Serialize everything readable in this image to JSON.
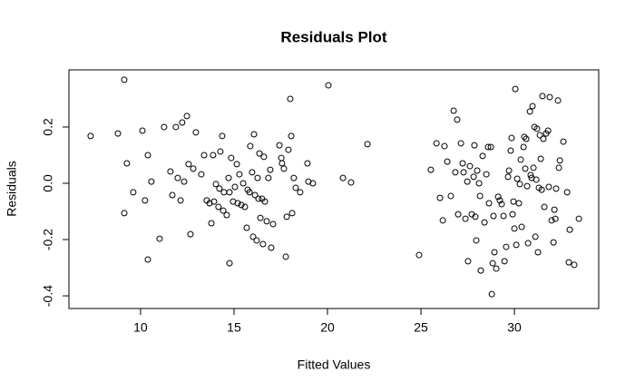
{
  "chart_data": {
    "type": "scatter",
    "title": "Residuals Plot",
    "xlabel": "Fitted Values",
    "ylabel": "Residuals",
    "x": [
      7.33,
      8.79,
      9.13,
      9.27,
      9.13,
      9.61,
      10.1,
      10.24,
      10.39,
      10.39,
      10.58,
      11.02,
      11.26,
      11.6,
      11.7,
      11.89,
      11.99,
      12.14,
      12.23,
      12.33,
      12.48,
      12.57,
      12.67,
      12.82,
      12.96,
      13.25,
      13.4,
      13.54,
      13.69,
      13.79,
      13.88,
      13.93,
      14.03,
      14.17,
      14.22,
      14.27,
      14.37,
      14.42,
      14.46,
      14.61,
      14.71,
      14.76,
      14.76,
      14.85,
      14.95,
      15.05,
      15.15,
      15.2,
      15.29,
      15.39,
      15.49,
      15.58,
      15.68,
      15.73,
      15.83,
      15.87,
      15.97,
      16.02,
      16.07,
      16.12,
      16.21,
      16.26,
      16.31,
      16.36,
      16.41,
      16.5,
      16.55,
      16.6,
      16.65,
      16.75,
      16.84,
      16.94,
      16.99,
      17.09,
      17.43,
      17.53,
      17.57,
      17.67,
      17.77,
      17.82,
      17.91,
      18.01,
      18.06,
      18.11,
      18.2,
      18.3,
      18.54,
      18.93,
      18.98,
      19.22,
      20.05,
      20.83,
      21.26,
      22.14,
      24.9,
      25.53,
      25.83,
      26.02,
      26.17,
      26.26,
      26.41,
      26.6,
      26.75,
      26.84,
      26.94,
      26.99,
      27.14,
      27.23,
      27.28,
      27.38,
      27.48,
      27.52,
      27.62,
      27.72,
      27.82,
      27.86,
      27.91,
      27.96,
      28.01,
      28.11,
      28.16,
      28.2,
      28.3,
      28.4,
      28.5,
      28.59,
      28.64,
      28.74,
      28.79,
      28.84,
      28.88,
      28.93,
      29.03,
      29.13,
      29.22,
      29.32,
      29.42,
      29.47,
      29.56,
      29.66,
      29.71,
      29.8,
      29.85,
      29.9,
      29.95,
      30.0,
      30.05,
      30.1,
      30.15,
      30.24,
      30.29,
      30.34,
      30.39,
      30.49,
      30.53,
      30.58,
      30.63,
      30.68,
      30.73,
      30.83,
      30.87,
      30.92,
      30.97,
      31.02,
      31.07,
      31.12,
      31.17,
      31.21,
      31.26,
      31.31,
      31.36,
      31.41,
      31.46,
      31.5,
      31.55,
      31.6,
      31.7,
      31.8,
      31.84,
      31.89,
      31.99,
      32.09,
      32.14,
      32.19,
      32.23,
      32.33,
      32.38,
      32.43,
      32.62,
      32.82,
      32.91,
      32.96,
      33.2,
      33.45
    ],
    "values": [
      0.168,
      0.177,
      0.368,
      0.071,
      -0.106,
      -0.032,
      0.187,
      -0.061,
      0.1,
      -0.271,
      0.006,
      -0.197,
      0.2,
      0.042,
      -0.042,
      0.2,
      0.019,
      -0.061,
      0.216,
      0.006,
      0.239,
      0.068,
      -0.181,
      0.052,
      0.181,
      0.032,
      0.1,
      -0.061,
      -0.071,
      -0.142,
      0.1,
      -0.065,
      -0.003,
      -0.084,
      -0.019,
      0.113,
      0.168,
      -0.097,
      -0.032,
      -0.113,
      0.019,
      -0.032,
      -0.284,
      0.09,
      -0.065,
      -0.013,
      0.068,
      -0.071,
      0.032,
      -0.077,
      0.0,
      -0.084,
      -0.158,
      -0.023,
      -0.032,
      0.132,
      0.039,
      -0.19,
      0.174,
      -0.042,
      -0.203,
      0.019,
      -0.055,
      0.106,
      -0.123,
      -0.055,
      -0.216,
      0.094,
      -0.065,
      -0.135,
      0.019,
      0.048,
      -0.229,
      -0.145,
      0.135,
      0.09,
      0.071,
      0.052,
      -0.261,
      -0.119,
      0.119,
      0.3,
      0.168,
      -0.106,
      0.019,
      -0.016,
      -0.032,
      0.071,
      0.006,
      0.0,
      0.348,
      0.019,
      0.003,
      0.139,
      -0.255,
      0.048,
      0.142,
      -0.052,
      -0.132,
      0.132,
      0.077,
      -0.045,
      0.258,
      0.039,
      0.226,
      -0.11,
      0.142,
      0.071,
      0.039,
      -0.126,
      0.006,
      -0.277,
      0.061,
      -0.11,
      0.023,
      0.135,
      -0.119,
      -0.203,
      0.045,
      0.0,
      -0.045,
      -0.31,
      0.097,
      -0.139,
      0.032,
      0.129,
      -0.071,
      0.129,
      -0.394,
      -0.284,
      -0.116,
      -0.245,
      -0.303,
      -0.048,
      -0.061,
      -0.074,
      -0.116,
      -0.277,
      -0.226,
      0.023,
      0.045,
      0.116,
      0.161,
      -0.11,
      -0.065,
      -0.161,
      0.335,
      -0.219,
      0.016,
      -0.071,
      -0.003,
      0.084,
      -0.155,
      0.129,
      0.165,
      0.052,
      0.158,
      -0.01,
      -0.213,
      0.255,
      0.029,
      0.019,
      0.274,
      0.055,
      0.2,
      -0.19,
      0.013,
      0.194,
      -0.245,
      -0.016,
      0.171,
      0.087,
      -0.023,
      0.31,
      0.158,
      -0.084,
      0.177,
      0.187,
      -0.013,
      0.306,
      -0.132,
      -0.21,
      -0.094,
      -0.126,
      -0.019,
      0.294,
      0.055,
      0.081,
      0.148,
      -0.032,
      -0.281,
      -0.165,
      -0.29,
      -0.126
    ],
    "color": "#000000",
    "xlim": [
      6.17,
      34.51
    ],
    "ylim": [
      -0.445,
      0.403
    ],
    "xticks": [
      10,
      15,
      20,
      25,
      30
    ],
    "yticks": [
      -0.4,
      -0.2,
      {
        "value": 0,
        "label": "0.0"
      },
      0.2
    ]
  }
}
